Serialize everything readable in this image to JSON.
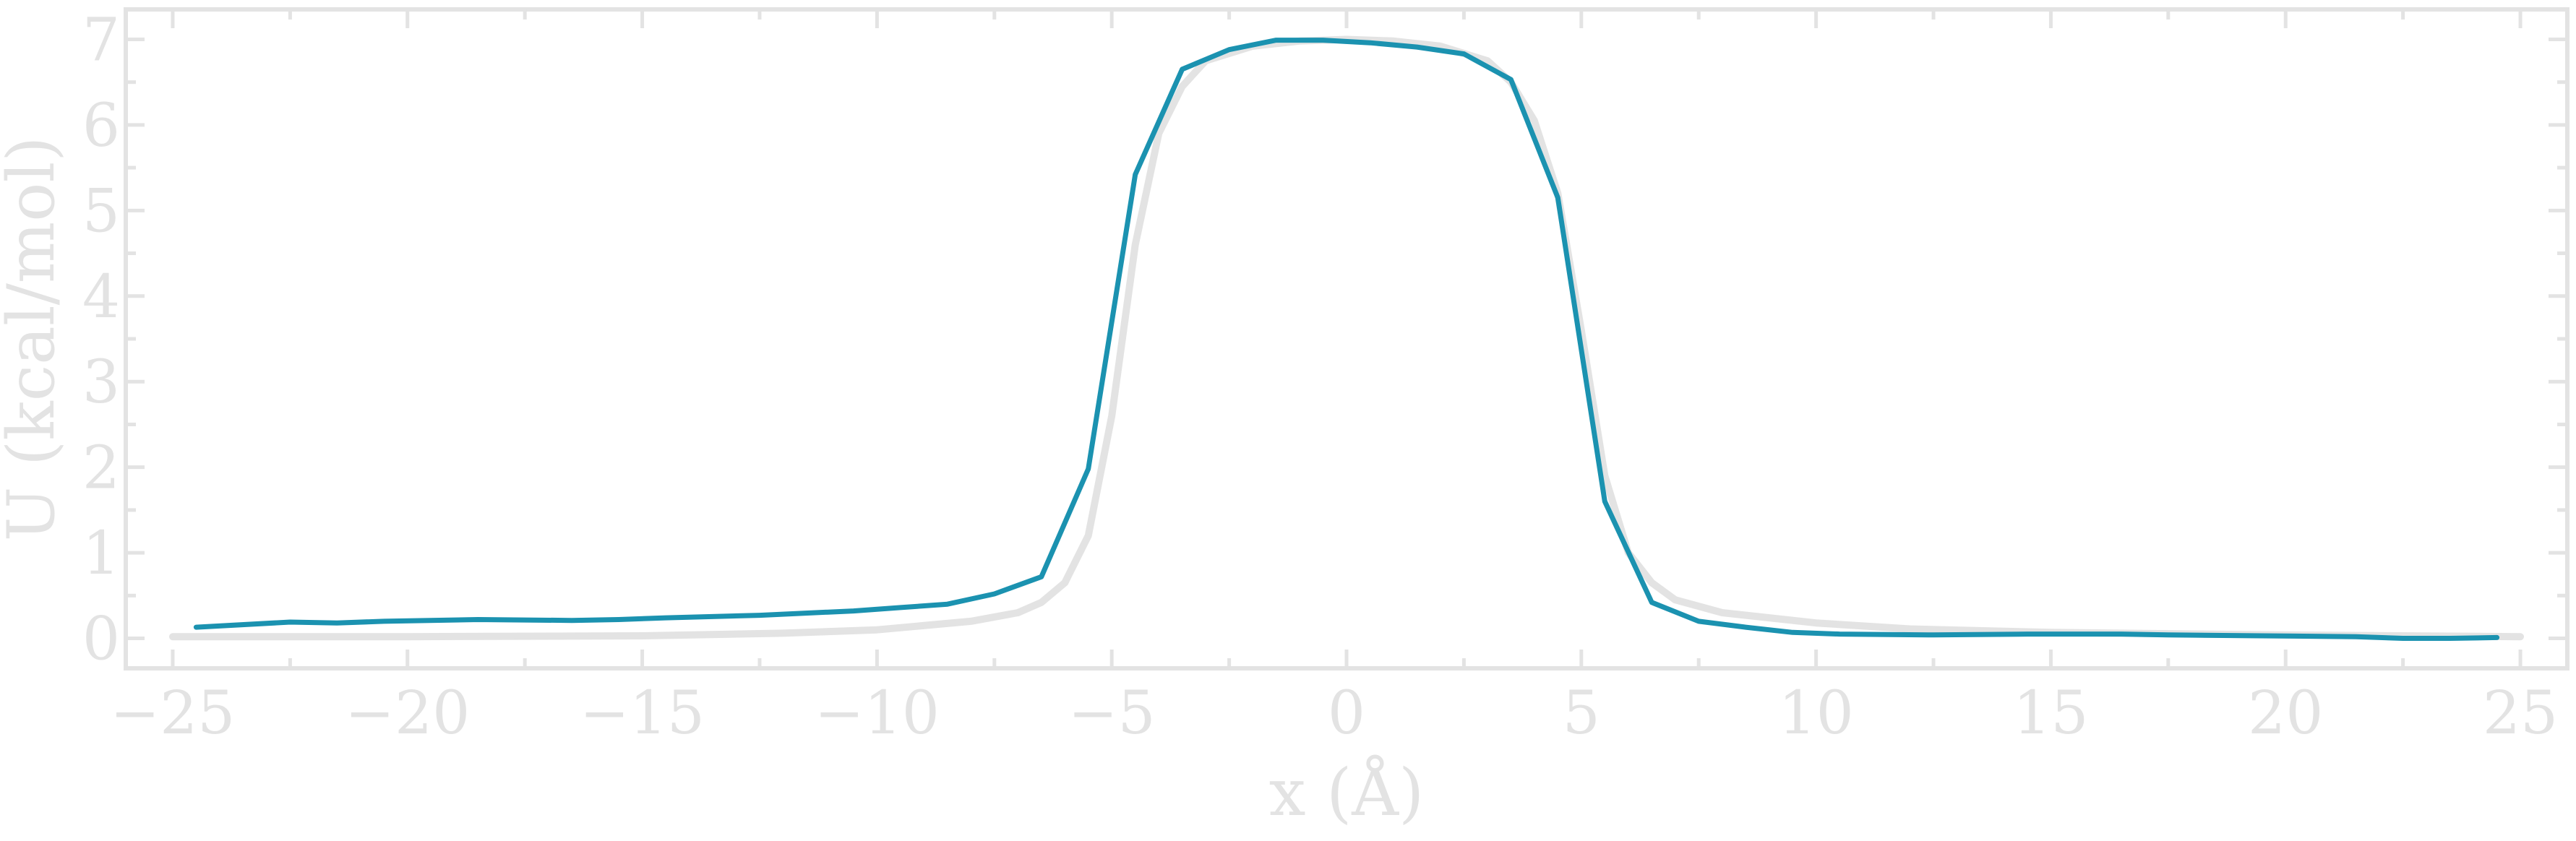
{
  "chart_data": {
    "type": "line",
    "title": "",
    "xlabel": "x (Å)",
    "ylabel": "U (kcal/mol)",
    "xlim": [
      -26.0,
      26.0
    ],
    "ylim": [
      -0.35,
      7.35
    ],
    "x_ticks": [
      -25,
      -20,
      -15,
      -10,
      -5,
      0,
      5,
      10,
      15,
      20,
      25
    ],
    "y_ticks": [
      0,
      1,
      2,
      3,
      4,
      5,
      6,
      7
    ],
    "x_tick_labels": [
      "−25",
      "−20",
      "−15",
      "−10",
      "−5",
      "0",
      "5",
      "10",
      "15",
      "20",
      "25"
    ],
    "y_tick_labels": [
      "0",
      "1",
      "2",
      "3",
      "4",
      "5",
      "6",
      "7"
    ],
    "grid": false,
    "series": [
      {
        "color": "#e3e3e3",
        "x": [
          -25,
          -20,
          -15,
          -12,
          -10,
          -8,
          -7,
          -6.5,
          -6,
          -5.5,
          -5,
          -4.5,
          -4,
          -3.5,
          -3,
          -2,
          -1,
          0,
          1,
          2,
          3,
          3.5,
          4,
          4.5,
          5,
          5.5,
          6,
          6.5,
          7,
          8,
          10,
          12,
          15,
          20,
          25
        ],
        "y": [
          0.02,
          0.02,
          0.03,
          0.06,
          0.1,
          0.2,
          0.3,
          0.42,
          0.65,
          1.2,
          2.6,
          4.6,
          5.9,
          6.45,
          6.75,
          6.92,
          6.98,
          7.0,
          6.98,
          6.92,
          6.75,
          6.5,
          6.05,
          5.2,
          3.6,
          1.9,
          1.0,
          0.65,
          0.45,
          0.3,
          0.18,
          0.11,
          0.07,
          0.04,
          0.02
        ]
      },
      {
        "color": "#1b92b0",
        "x": [
          -24.5,
          -22.5,
          -21.5,
          -20.5,
          -18.5,
          -16.5,
          -15.5,
          -14.5,
          -12.5,
          -10.5,
          -9.5,
          -8.5,
          -7.5,
          -6.5,
          -5.5,
          -4.5,
          -3.5,
          -2.5,
          -1.5,
          -0.5,
          0.5,
          1.5,
          2.5,
          3.5,
          4.5,
          5.5,
          6.5,
          7.5,
          8.5,
          9.5,
          10.5,
          12.5,
          14.5,
          16.5,
          17.5,
          19.5,
          21.5,
          22.5,
          23.5,
          24.5
        ],
        "y": [
          0.13,
          0.19,
          0.18,
          0.2,
          0.22,
          0.21,
          0.22,
          0.24,
          0.27,
          0.32,
          0.36,
          0.4,
          0.52,
          0.72,
          1.98,
          5.42,
          6.65,
          6.88,
          6.99,
          6.99,
          6.96,
          6.91,
          6.83,
          6.53,
          5.15,
          1.6,
          0.42,
          0.2,
          0.13,
          0.07,
          0.05,
          0.04,
          0.05,
          0.05,
          0.04,
          0.03,
          0.02,
          0.0,
          0.0,
          0.01
        ]
      }
    ]
  }
}
